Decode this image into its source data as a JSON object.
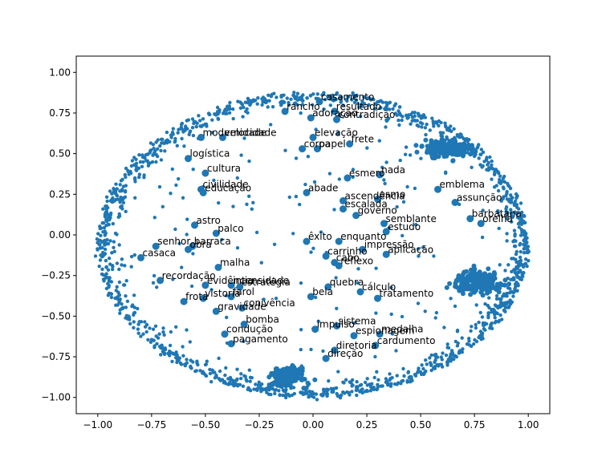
{
  "chart_data": {
    "type": "scatter",
    "title": "",
    "xlabel": "",
    "ylabel": "",
    "xlim": [
      -1.1,
      1.1
    ],
    "ylim": [
      -1.1,
      1.1
    ],
    "xticks": [
      "−1.00",
      "−0.75",
      "−0.50",
      "−0.25",
      "0.00",
      "0.25",
      "0.50",
      "0.75",
      "1.00"
    ],
    "yticks": [
      "−1.00",
      "−0.75",
      "−0.50",
      "−0.25",
      "0.00",
      "0.25",
      "0.50",
      "0.75",
      "1.00"
    ],
    "grid": false,
    "legend": "none",
    "point_color": "#1f77b4",
    "boundary_ellipse": {
      "cx": 0.0,
      "cy": -0.06,
      "rx": 1.0,
      "ry": 0.94
    },
    "clusters": [
      {
        "x": 0.62,
        "y": 0.53,
        "spread_x": 0.08,
        "spread_y": 0.04
      },
      {
        "x": 0.77,
        "y": -0.29,
        "spread_x": 0.09,
        "spread_y": 0.05
      },
      {
        "x": -0.12,
        "y": -0.87,
        "spread_x": 0.05,
        "spread_y": 0.04
      }
    ],
    "labeled_points": [
      {
        "label": "casamento",
        "x": 0.03,
        "y": 0.82
      },
      {
        "label": "rancho",
        "x": -0.13,
        "y": 0.76
      },
      {
        "label": "resultado",
        "x": 0.1,
        "y": 0.76
      },
      {
        "label": "adoração",
        "x": -0.01,
        "y": 0.72
      },
      {
        "label": "contradição",
        "x": 0.11,
        "y": 0.71
      },
      {
        "label": "elevação",
        "x": 0.0,
        "y": 0.6
      },
      {
        "label": "frete",
        "x": 0.17,
        "y": 0.56
      },
      {
        "label": "coroa",
        "x": -0.05,
        "y": 0.53
      },
      {
        "label": "papel",
        "x": 0.02,
        "y": 0.53
      },
      {
        "label": "modernidade",
        "x": -0.52,
        "y": 0.6
      },
      {
        "label": "velocidade",
        "x": -0.42,
        "y": 0.6
      },
      {
        "label": "logística",
        "x": -0.58,
        "y": 0.47
      },
      {
        "label": "cultura",
        "x": -0.5,
        "y": 0.38
      },
      {
        "label": "civilidade",
        "x": -0.52,
        "y": 0.28
      },
      {
        "label": "educação",
        "x": -0.51,
        "y": 0.26
      },
      {
        "label": "esmero",
        "x": 0.16,
        "y": 0.35
      },
      {
        "label": "nada",
        "x": 0.31,
        "y": 0.37
      },
      {
        "label": "abade",
        "x": -0.03,
        "y": 0.26
      },
      {
        "label": "ascendência",
        "x": 0.14,
        "y": 0.21
      },
      {
        "label": "esmo",
        "x": 0.3,
        "y": 0.22
      },
      {
        "label": "escalada",
        "x": 0.14,
        "y": 0.16
      },
      {
        "label": "governo",
        "x": 0.2,
        "y": 0.12
      },
      {
        "label": "semblante",
        "x": 0.33,
        "y": 0.07
      },
      {
        "label": "emblema",
        "x": 0.58,
        "y": 0.28
      },
      {
        "label": "assunção",
        "x": 0.66,
        "y": 0.2
      },
      {
        "label": "barbatana",
        "x": 0.73,
        "y": 0.1
      },
      {
        "label": "orelha",
        "x": 0.78,
        "y": 0.07
      },
      {
        "label": "astro",
        "x": -0.55,
        "y": 0.06
      },
      {
        "label": "palco",
        "x": -0.45,
        "y": 0.01
      },
      {
        "label": "senhor",
        "x": -0.73,
        "y": -0.07
      },
      {
        "label": "barraca",
        "x": -0.56,
        "y": -0.07
      },
      {
        "label": "obra",
        "x": -0.58,
        "y": -0.09
      },
      {
        "label": "casaca",
        "x": -0.8,
        "y": -0.14
      },
      {
        "label": "malha",
        "x": -0.44,
        "y": -0.2
      },
      {
        "label": "êxito",
        "x": -0.03,
        "y": -0.04
      },
      {
        "label": "enquanto",
        "x": 0.12,
        "y": -0.04
      },
      {
        "label": "estudo",
        "x": 0.34,
        "y": 0.02
      },
      {
        "label": "impressão",
        "x": 0.23,
        "y": -0.09
      },
      {
        "label": "carrinho",
        "x": 0.06,
        "y": -0.13
      },
      {
        "label": "aplicação",
        "x": 0.34,
        "y": -0.12
      },
      {
        "label": "cabo",
        "x": 0.1,
        "y": -0.17
      },
      {
        "label": "reflexo",
        "x": 0.12,
        "y": -0.19
      },
      {
        "label": "recordação",
        "x": -0.71,
        "y": -0.28
      },
      {
        "label": "evidência",
        "x": -0.5,
        "y": -0.31
      },
      {
        "label": "intensidade",
        "x": -0.38,
        "y": -0.31
      },
      {
        "label": "estratégia",
        "x": -0.34,
        "y": -0.32
      },
      {
        "label": "vistoria",
        "x": -0.51,
        "y": -0.39
      },
      {
        "label": "farol",
        "x": -0.38,
        "y": -0.38
      },
      {
        "label": "frota",
        "x": -0.6,
        "y": -0.41
      },
      {
        "label": "gravidade",
        "x": -0.45,
        "y": -0.47
      },
      {
        "label": "conivência",
        "x": -0.33,
        "y": -0.45
      },
      {
        "label": "bomba",
        "x": -0.32,
        "y": -0.55
      },
      {
        "label": "condução",
        "x": -0.41,
        "y": -0.61
      },
      {
        "label": "pagamento",
        "x": -0.38,
        "y": -0.67
      },
      {
        "label": "quebra",
        "x": 0.07,
        "y": -0.32
      },
      {
        "label": "bela",
        "x": -0.01,
        "y": -0.38
      },
      {
        "label": "cálculo",
        "x": 0.22,
        "y": -0.35
      },
      {
        "label": "tratamento",
        "x": 0.3,
        "y": -0.39
      },
      {
        "label": "sistema",
        "x": 0.11,
        "y": -0.56
      },
      {
        "label": "impulso",
        "x": 0.01,
        "y": -0.58
      },
      {
        "label": "espionagem",
        "x": 0.19,
        "y": -0.62
      },
      {
        "label": "medalha",
        "x": 0.31,
        "y": -0.61
      },
      {
        "label": "cardumento",
        "x": 0.29,
        "y": -0.68
      },
      {
        "label": "diretoria",
        "x": 0.1,
        "y": -0.71
      },
      {
        "label": "direção",
        "x": 0.06,
        "y": -0.76
      }
    ]
  }
}
